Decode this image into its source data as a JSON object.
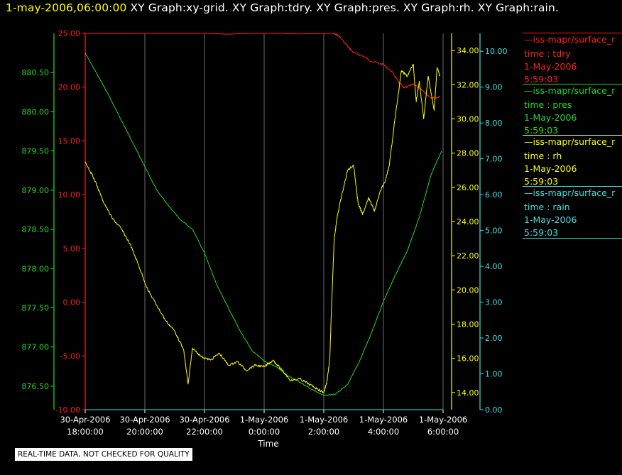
{
  "header": {
    "time": "1-may-2006,06:00:00",
    "graphs": "XY Graph:xy-grid.  XY Graph:tdry.  XY Graph:pres.  XY Graph:rh.  XY Graph:rain."
  },
  "footer_note": "REAL-TIME DATA, NOT CHECKED FOR QUALITY",
  "legend": [
    {
      "name": "—iss-mapr/surface_r",
      "var": "time : tdry",
      "date": "1-May-2006",
      "time": "5:59:03",
      "color": "#ff2020"
    },
    {
      "name": "—iss-mapr/surface_r",
      "var": "time : pres",
      "date": "1-May-2006",
      "time": "5:59:03",
      "color": "#22dd22"
    },
    {
      "name": "—iss-mapr/surface_r",
      "var": "time : rh",
      "date": "1-May-2006",
      "time": "5:59:03",
      "color": "#ffff00"
    },
    {
      "name": "—iss-mapr/surface_r",
      "var": "time : rain",
      "date": "1-May-2006",
      "time": "5:59:03",
      "color": "#40e0e0"
    }
  ],
  "chart_data": {
    "type": "line",
    "xlabel": "Time",
    "x_range_hours": [
      18.0,
      30.0
    ],
    "x_ticks": [
      {
        "hour": 18,
        "date": "30-Apr-2006",
        "time": "18:00:00"
      },
      {
        "hour": 20,
        "date": "30-Apr-2006",
        "time": "20:00:00"
      },
      {
        "hour": 22,
        "date": "30-Apr-2006",
        "time": "22:00:00"
      },
      {
        "hour": 24,
        "date": "1-May-2006",
        "time": "0:00:00"
      },
      {
        "hour": 26,
        "date": "1-May-2006",
        "time": "2:00:00"
      },
      {
        "hour": 28,
        "date": "1-May-2006",
        "time": "4:00:00"
      },
      {
        "hour": 30,
        "date": "1-May-2006",
        "time": "6:00:00"
      }
    ],
    "grid": true,
    "axes": [
      {
        "id": "pres",
        "color": "#22dd22",
        "side": "left-outer",
        "range": [
          876.2,
          881.0
        ],
        "ticks": [
          "876.50",
          "877.00",
          "877.50",
          "878.00",
          "878.50",
          "879.00",
          "879.50",
          "880.00",
          "880.50"
        ]
      },
      {
        "id": "tdry",
        "color": "#ff2020",
        "side": "left-inner",
        "range": [
          -10,
          25
        ],
        "ticks": [
          "-10.00",
          "-5.00",
          "0.00",
          "5.00",
          "10.00",
          "15.00",
          "20.00",
          "25.00"
        ]
      },
      {
        "id": "rh",
        "color": "#ffff00",
        "side": "right-inner",
        "range": [
          13,
          35
        ],
        "ticks": [
          "14.00",
          "16.00",
          "18.00",
          "20.00",
          "22.00",
          "24.00",
          "26.00",
          "28.00",
          "30.00",
          "32.00",
          "34.00"
        ]
      },
      {
        "id": "rain",
        "color": "#40e0e0",
        "side": "right-outer",
        "range": [
          0,
          10.5
        ],
        "ticks": [
          "0.00",
          "1.00",
          "2.00",
          "3.00",
          "4.00",
          "5.00",
          "6.00",
          "7.00",
          "8.00",
          "9.00",
          "10.00"
        ]
      }
    ],
    "series": [
      {
        "axis": "tdry",
        "color": "#ff2020",
        "x": [
          18.0,
          26.3,
          26.5,
          26.8,
          27.0,
          27.3,
          27.6,
          28.0,
          28.3,
          28.5,
          28.7,
          29.0,
          29.3,
          29.6,
          29.9
        ],
        "y": [
          25.0,
          25.0,
          24.8,
          23.8,
          23.2,
          22.9,
          22.4,
          22.1,
          21.4,
          20.5,
          19.9,
          20.3,
          19.7,
          19.0,
          19.1
        ]
      },
      {
        "axis": "pres",
        "color": "#22dd22",
        "x": [
          18.0,
          18.4,
          18.8,
          19.2,
          19.6,
          20.0,
          20.4,
          20.8,
          21.2,
          21.6,
          22.0,
          22.4,
          22.8,
          23.2,
          23.6,
          24.0,
          24.4,
          24.8,
          25.2,
          25.6,
          26.0,
          26.4,
          26.8,
          27.2,
          27.6,
          28.0,
          28.4,
          28.8,
          29.2,
          29.6,
          29.95
        ],
        "y": [
          880.75,
          880.48,
          880.2,
          879.9,
          879.6,
          879.3,
          879.0,
          878.8,
          878.62,
          878.5,
          878.2,
          877.8,
          877.5,
          877.2,
          876.95,
          876.82,
          876.75,
          876.63,
          876.55,
          876.46,
          876.38,
          876.4,
          876.52,
          876.82,
          877.18,
          877.58,
          877.92,
          878.22,
          878.65,
          879.2,
          879.5
        ]
      },
      {
        "axis": "rh",
        "color": "#ffff00",
        "x": [
          18.0,
          18.3,
          18.6,
          18.9,
          19.2,
          19.5,
          19.8,
          20.1,
          20.4,
          20.7,
          21.0,
          21.3,
          21.45,
          21.6,
          21.9,
          22.2,
          22.5,
          22.8,
          23.1,
          23.4,
          23.7,
          24.0,
          24.3,
          24.6,
          24.9,
          25.2,
          25.5,
          25.8,
          26.0,
          26.1,
          26.2,
          26.25,
          26.35,
          26.45,
          26.6,
          26.8,
          27.0,
          27.15,
          27.3,
          27.5,
          27.7,
          27.9,
          28.05,
          28.2,
          28.35,
          28.6,
          28.8,
          29.0,
          29.1,
          29.2,
          29.35,
          29.5,
          29.6,
          29.7,
          29.8,
          29.9
        ],
        "y": [
          27.5,
          26.5,
          25.2,
          24.2,
          23.6,
          22.7,
          21.4,
          20.0,
          19.1,
          18.2,
          17.6,
          16.5,
          14.5,
          16.6,
          16.1,
          15.9,
          16.3,
          15.6,
          15.8,
          15.3,
          15.6,
          15.5,
          15.9,
          15.3,
          14.7,
          14.8,
          14.5,
          14.2,
          14.0,
          14.6,
          15.9,
          18.5,
          23.0,
          24.3,
          25.5,
          27.0,
          27.3,
          25.1,
          24.4,
          25.4,
          24.6,
          25.8,
          26.3,
          27.3,
          29.5,
          32.8,
          32.5,
          33.2,
          31.0,
          32.2,
          30.0,
          32.5,
          31.5,
          30.5,
          33.0,
          32.5
        ]
      },
      {
        "axis": "rain",
        "color": "#40e0e0",
        "x": [
          18.0,
          30.0
        ],
        "y": [
          0.0,
          0.0
        ]
      }
    ]
  }
}
